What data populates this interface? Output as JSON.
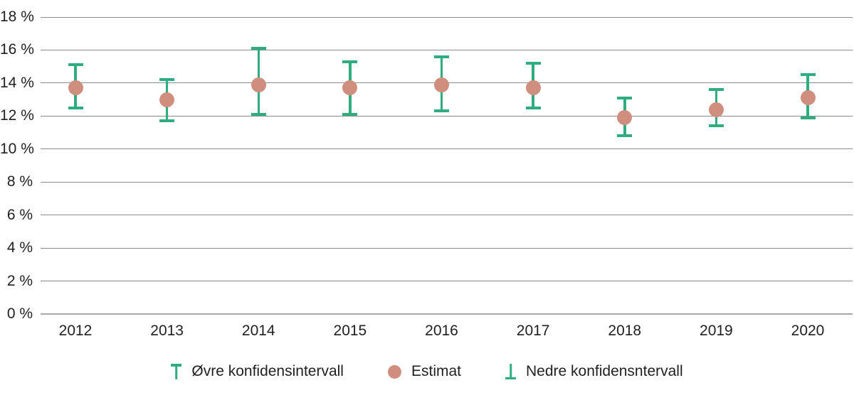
{
  "chart_data": {
    "type": "scatter",
    "title": "",
    "xlabel": "",
    "ylabel": "",
    "categories": [
      "2012",
      "2013",
      "2014",
      "2015",
      "2016",
      "2017",
      "2018",
      "2019",
      "2020"
    ],
    "series": [
      {
        "name": "Øvre konfidensintervall",
        "role": "upper_ci",
        "values": [
          15.1,
          14.2,
          16.1,
          15.3,
          15.6,
          15.2,
          13.1,
          13.6,
          14.5
        ]
      },
      {
        "name": "Estimat",
        "role": "estimate",
        "values": [
          13.7,
          13.0,
          13.9,
          13.7,
          13.9,
          13.7,
          11.9,
          12.4,
          13.1
        ]
      },
      {
        "name": "Nedre konfidensntervall",
        "role": "lower_ci",
        "values": [
          12.5,
          11.7,
          12.1,
          12.1,
          12.3,
          12.5,
          10.8,
          11.4,
          11.9
        ]
      }
    ],
    "ylim": [
      0,
      18
    ],
    "yticks": [
      0,
      2,
      4,
      6,
      8,
      10,
      12,
      14,
      16,
      18
    ],
    "ytick_labels": [
      "0 %",
      "2 %",
      "4 %",
      "6 %",
      "8 %",
      "10 %",
      "12 %",
      "14 %",
      "16 %",
      "18 %"
    ],
    "grid": true,
    "legend_position": "bottom"
  },
  "legend": {
    "items": [
      {
        "icon": "upper-whisker-icon",
        "label": "Øvre konfidensintervall"
      },
      {
        "icon": "estimate-dot-icon",
        "label": "Estimat"
      },
      {
        "icon": "lower-whisker-icon",
        "label": "Nedre konfidensntervall"
      }
    ]
  },
  "colors": {
    "interval": "#2fac80",
    "estimate": "#cf8e7e",
    "gridline": "#8c8c8c",
    "axis_line": "#a9a9a9",
    "text": "#1f1f1f",
    "background": "#ffffff"
  }
}
